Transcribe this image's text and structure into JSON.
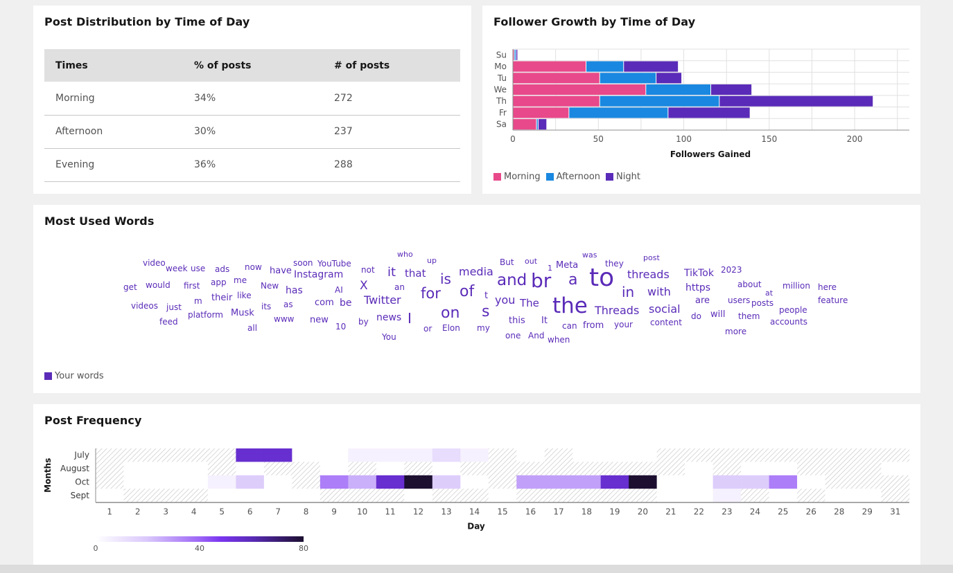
{
  "distribution": {
    "title": "Post Distribution by Time of Day",
    "columns": [
      "Times",
      "% of posts",
      "# of posts"
    ],
    "rows": [
      {
        "time": "Morning",
        "percent": "34%",
        "count": "272"
      },
      {
        "time": "Afternoon",
        "percent": "30%",
        "count": "237"
      },
      {
        "time": "Evening",
        "percent": "36%",
        "count": "288"
      }
    ]
  },
  "growth": {
    "title": "Follower Growth by Time of Day",
    "legend": [
      "Morning",
      "Afternoon",
      "Night"
    ],
    "colors": {
      "Morning": "#e8498a",
      "Afternoon": "#1a88e0",
      "Night": "#5a2bb8"
    }
  },
  "words": {
    "title": "Most Used Words",
    "legend_label": "Your words",
    "color": "#5a2bb8",
    "list": [
      {
        "text": "video",
        "size": 12
      },
      {
        "text": "week",
        "size": 12
      },
      {
        "text": "use",
        "size": 12
      },
      {
        "text": "ads",
        "size": 12
      },
      {
        "text": "now",
        "size": 12
      },
      {
        "text": "have",
        "size": 13
      },
      {
        "text": "soon",
        "size": 12
      },
      {
        "text": "YouTube",
        "size": 12
      },
      {
        "text": "get",
        "size": 12
      },
      {
        "text": "would",
        "size": 12
      },
      {
        "text": "first",
        "size": 12
      },
      {
        "text": "app",
        "size": 12
      },
      {
        "text": "me",
        "size": 12
      },
      {
        "text": "New",
        "size": 12
      },
      {
        "text": "has",
        "size": 14
      },
      {
        "text": "Instagram",
        "size": 14
      },
      {
        "text": "AI",
        "size": 12
      },
      {
        "text": "videos",
        "size": 12
      },
      {
        "text": "just",
        "size": 12
      },
      {
        "text": "m",
        "size": 12
      },
      {
        "text": "their",
        "size": 13
      },
      {
        "text": "like",
        "size": 12
      },
      {
        "text": "its",
        "size": 12
      },
      {
        "text": "as",
        "size": 12
      },
      {
        "text": "com",
        "size": 13
      },
      {
        "text": "be",
        "size": 14
      },
      {
        "text": "feed",
        "size": 12
      },
      {
        "text": "platform",
        "size": 12
      },
      {
        "text": "Musk",
        "size": 13
      },
      {
        "text": "www",
        "size": 12
      },
      {
        "text": "new",
        "size": 13
      },
      {
        "text": "all",
        "size": 12
      },
      {
        "text": "10",
        "size": 12
      },
      {
        "text": "who",
        "size": 11
      },
      {
        "text": "up",
        "size": 11
      },
      {
        "text": "not",
        "size": 12
      },
      {
        "text": "it",
        "size": 18
      },
      {
        "text": "that",
        "size": 15
      },
      {
        "text": "is",
        "size": 20
      },
      {
        "text": "media",
        "size": 16
      },
      {
        "text": "X",
        "size": 17
      },
      {
        "text": "an",
        "size": 12
      },
      {
        "text": "Twitter",
        "size": 16
      },
      {
        "text": "for",
        "size": 21
      },
      {
        "text": "of",
        "size": 22
      },
      {
        "text": "t",
        "size": 13
      },
      {
        "text": "by",
        "size": 12
      },
      {
        "text": "news",
        "size": 14
      },
      {
        "text": "I",
        "size": 20
      },
      {
        "text": "on",
        "size": 22
      },
      {
        "text": "s",
        "size": 22
      },
      {
        "text": "You",
        "size": 12
      },
      {
        "text": "or",
        "size": 12
      },
      {
        "text": "Elon",
        "size": 12
      },
      {
        "text": "my",
        "size": 12
      },
      {
        "text": "But",
        "size": 12
      },
      {
        "text": "out",
        "size": 11
      },
      {
        "text": "1",
        "size": 11
      },
      {
        "text": "Meta",
        "size": 13
      },
      {
        "text": "was",
        "size": 11
      },
      {
        "text": "they",
        "size": 12
      },
      {
        "text": "post",
        "size": 11
      },
      {
        "text": "and",
        "size": 23
      },
      {
        "text": "br",
        "size": 28
      },
      {
        "text": "a",
        "size": 22
      },
      {
        "text": "to",
        "size": 36
      },
      {
        "text": "threads",
        "size": 16
      },
      {
        "text": "in",
        "size": 20
      },
      {
        "text": "with",
        "size": 16
      },
      {
        "text": "you",
        "size": 16
      },
      {
        "text": "The",
        "size": 15
      },
      {
        "text": "the",
        "size": 31
      },
      {
        "text": "Threads",
        "size": 16
      },
      {
        "text": "social",
        "size": 16
      },
      {
        "text": "this",
        "size": 13
      },
      {
        "text": "It",
        "size": 13
      },
      {
        "text": "can",
        "size": 12
      },
      {
        "text": "from",
        "size": 13
      },
      {
        "text": "your",
        "size": 12
      },
      {
        "text": "content",
        "size": 12
      },
      {
        "text": "one",
        "size": 12
      },
      {
        "text": "And",
        "size": 12
      },
      {
        "text": "when",
        "size": 12
      },
      {
        "text": "TikTok",
        "size": 14
      },
      {
        "text": "2023",
        "size": 12
      },
      {
        "text": "https",
        "size": 14
      },
      {
        "text": "about",
        "size": 12
      },
      {
        "text": "at",
        "size": 11
      },
      {
        "text": "million",
        "size": 12
      },
      {
        "text": "here",
        "size": 12
      },
      {
        "text": "are",
        "size": 13
      },
      {
        "text": "users",
        "size": 12
      },
      {
        "text": "posts",
        "size": 12
      },
      {
        "text": "people",
        "size": 12
      },
      {
        "text": "feature",
        "size": 12
      },
      {
        "text": "do",
        "size": 12
      },
      {
        "text": "will",
        "size": 13
      },
      {
        "text": "them",
        "size": 12
      },
      {
        "text": "accounts",
        "size": 12
      },
      {
        "text": "more",
        "size": 12
      }
    ]
  },
  "frequency": {
    "title": "Post Frequency"
  },
  "chart_data": [
    {
      "type": "bar",
      "orientation": "horizontal",
      "stacked": true,
      "title": "Follower Growth by Time of Day",
      "categories": [
        "Su",
        "Mo",
        "Tu",
        "We",
        "Th",
        "Fr",
        "Sa"
      ],
      "series": [
        {
          "name": "Morning",
          "values": [
            1,
            43,
            51,
            78,
            51,
            33,
            14
          ]
        },
        {
          "name": "Afternoon",
          "values": [
            1,
            22,
            33,
            38,
            70,
            58,
            1
          ]
        },
        {
          "name": "Night",
          "values": [
            1,
            32,
            15,
            24,
            90,
            48,
            5
          ]
        }
      ],
      "xlabel": "Followers Gained",
      "ylabel": "",
      "xlim": [
        0,
        232
      ],
      "xticks": [
        0,
        50,
        100,
        150,
        200
      ],
      "grid": true,
      "legend": "bottom-left"
    },
    {
      "type": "heatmap",
      "title": "Post Frequency",
      "xlabel": "Day",
      "ylabel": "Months",
      "x": [
        "1",
        "2",
        "3",
        "4",
        "5",
        "6",
        "7",
        "8",
        "9",
        "10",
        "11",
        "12",
        "13",
        "14",
        "15",
        "16",
        "17",
        "18",
        "19",
        "20",
        "21",
        "22",
        "23",
        "24",
        "25",
        "26",
        "28",
        "29",
        "31"
      ],
      "y": [
        "July",
        "August",
        "Oct",
        "Sept"
      ],
      "values": [
        [
          null,
          null,
          null,
          null,
          null,
          55,
          55,
          0,
          0,
          5,
          5,
          5,
          12,
          5,
          null,
          0,
          null,
          0,
          0,
          0,
          null,
          null,
          null,
          null,
          null,
          null,
          null,
          null,
          null
        ],
        [
          null,
          0,
          0,
          0,
          null,
          0,
          null,
          null,
          0,
          null,
          0,
          null,
          0,
          null,
          null,
          null,
          null,
          null,
          null,
          null,
          null,
          0,
          null,
          0,
          0,
          null,
          null,
          null,
          0
        ],
        [
          null,
          0,
          0,
          0,
          5,
          18,
          0,
          null,
          35,
          25,
          55,
          80,
          18,
          0,
          null,
          28,
          28,
          28,
          55,
          80,
          0,
          0,
          18,
          18,
          35,
          0,
          null,
          null,
          null
        ],
        [
          0,
          null,
          null,
          null,
          0,
          0,
          0,
          0,
          null,
          null,
          null,
          0,
          null,
          null,
          0,
          null,
          null,
          null,
          null,
          null,
          0,
          0,
          5,
          null,
          0,
          null,
          0,
          0,
          null
        ]
      ],
      "colorbar": {
        "min": 0,
        "max": 80,
        "ticks": [
          0,
          40,
          80
        ]
      },
      "null_style": "hatched"
    }
  ]
}
